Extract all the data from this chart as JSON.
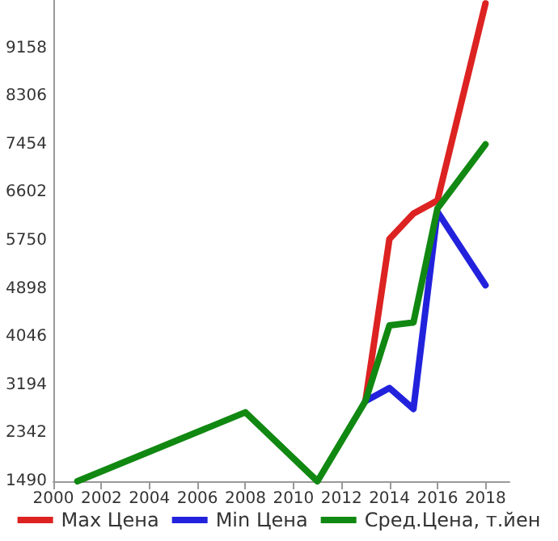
{
  "chart_data": {
    "type": "line",
    "xlim": [
      2000,
      2019
    ],
    "xticks": [
      2000,
      2002,
      2004,
      2006,
      2008,
      2010,
      2012,
      2014,
      2016,
      2018
    ],
    "ylim": [
      1490,
      10010
    ],
    "yticks": [
      1490,
      2342,
      3194,
      4046,
      4898,
      5750,
      6602,
      7454,
      8306,
      9158
    ],
    "grid": false,
    "legend": "bottom",
    "marker": "none",
    "line_style": "solid",
    "series": [
      {
        "name": "Max Цена",
        "color": "#dd2222",
        "x": [
          2013,
          2014,
          2015,
          2016,
          2018
        ],
        "values": [
          2910,
          5780,
          6230,
          6460,
          9950
        ]
      },
      {
        "name": "Min Цена",
        "color": "#2222dd",
        "x": [
          2013,
          2014,
          2015,
          2016,
          2018
        ],
        "values": [
          2910,
          3140,
          2770,
          6260,
          4960
        ]
      },
      {
        "name": "Сред.Цена, т.йен",
        "color": "#118811",
        "x": [
          2001,
          2008,
          2011,
          2013,
          2014,
          2015,
          2016,
          2018
        ],
        "values": [
          1490,
          2710,
          1490,
          2910,
          4250,
          4300,
          6320,
          7454
        ]
      }
    ]
  }
}
